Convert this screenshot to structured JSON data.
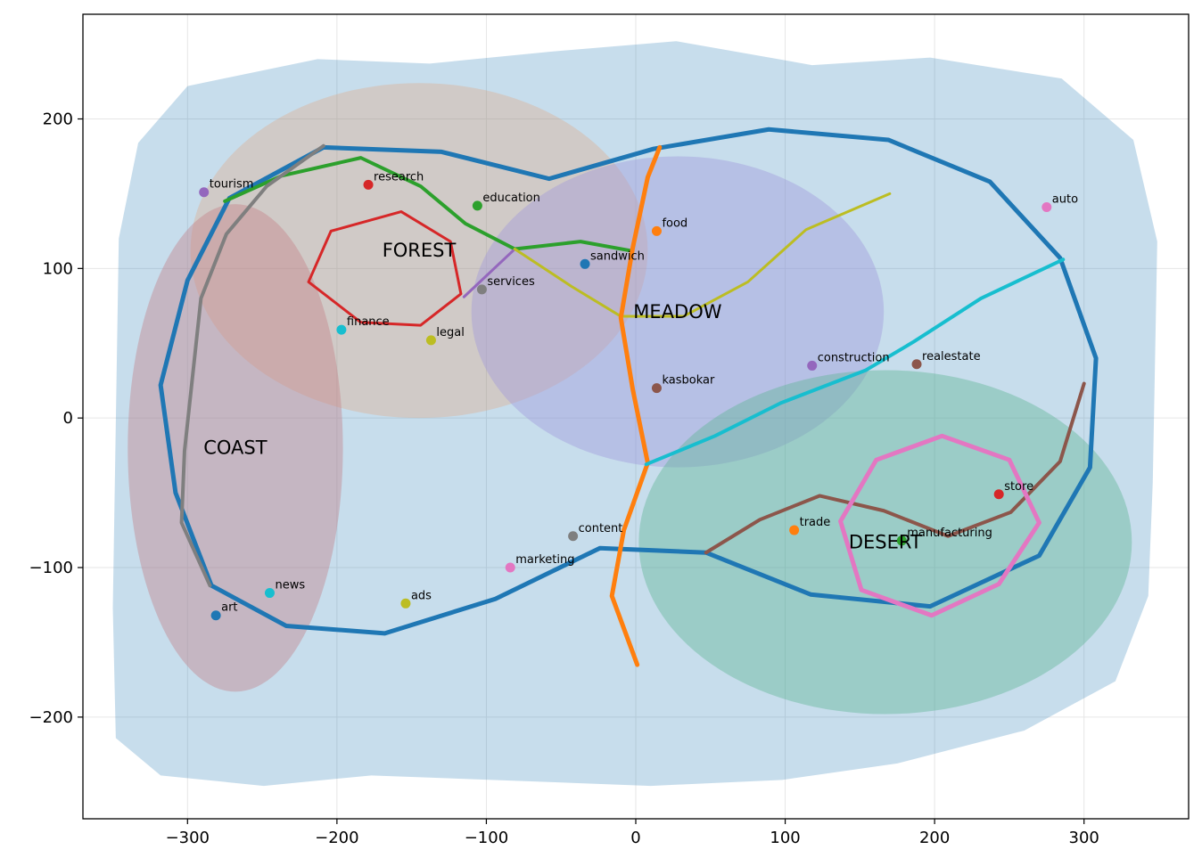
{
  "chart_data": {
    "type": "scatter",
    "title": "",
    "xlabel": "",
    "ylabel": "",
    "xlim": [
      -370,
      370
    ],
    "ylim": [
      -268,
      270
    ],
    "xticks": [
      -300,
      -200,
      -100,
      0,
      100,
      200,
      300
    ],
    "yticks": [
      -200,
      -100,
      0,
      100,
      200
    ],
    "xtick_labels": [
      "−300",
      "−200",
      "−100",
      "0",
      "100",
      "200",
      "300"
    ],
    "ytick_labels": [
      "−200",
      "−100",
      "0",
      "100",
      "200"
    ],
    "grid": true,
    "land": {
      "color": "#1f77b4",
      "opacity": 0.25,
      "polygon": [
        [
          -333,
          184
        ],
        [
          -300,
          222
        ],
        [
          -213,
          240
        ],
        [
          -138,
          237
        ],
        [
          -57,
          245
        ],
        [
          27,
          252
        ],
        [
          118,
          236
        ],
        [
          197,
          241
        ],
        [
          285,
          227
        ],
        [
          333,
          186
        ],
        [
          349,
          118
        ],
        [
          346,
          -43
        ],
        [
          343,
          -119
        ],
        [
          321,
          -176
        ],
        [
          260,
          -209
        ],
        [
          175,
          -231
        ],
        [
          98,
          -242
        ],
        [
          10,
          -246
        ],
        [
          -177,
          -239
        ],
        [
          -249,
          -246
        ],
        [
          -318,
          -239
        ],
        [
          -348,
          -214
        ],
        [
          -350,
          -127
        ],
        [
          -346,
          120
        ]
      ]
    },
    "regions": [
      {
        "name": "FOREST",
        "cx": -145,
        "cy": 112,
        "rx": 153,
        "ry": 112,
        "color": "#e3a072",
        "opacity": 0.3,
        "label_x": -145,
        "label_y": 112
      },
      {
        "name": "MEADOW",
        "cx": 28,
        "cy": 71,
        "rx": 138,
        "ry": 104,
        "color": "#9d96dd",
        "opacity": 0.4,
        "label_x": 28,
        "label_y": 71
      },
      {
        "name": "COAST",
        "cx": -268,
        "cy": -20,
        "rx": 72,
        "ry": 163,
        "color": "#c27c84",
        "opacity": 0.4,
        "label_x": -268,
        "label_y": -20
      },
      {
        "name": "DESERT",
        "cx": 167,
        "cy": -83,
        "rx": 165,
        "ry": 115,
        "color": "#59b492",
        "opacity": 0.4,
        "label_x": 167,
        "label_y": -83
      }
    ],
    "series": [
      {
        "color": "#1f77b4",
        "width": 5,
        "points": [
          [
            -209,
            181
          ],
          [
            -272,
            147
          ],
          [
            -300,
            92
          ],
          [
            -318,
            22
          ],
          [
            -308,
            -50
          ],
          [
            -284,
            -112
          ],
          [
            -234,
            -139
          ],
          [
            -168,
            -144
          ],
          [
            -94,
            -121
          ],
          [
            -24,
            -87
          ],
          [
            47,
            -90
          ],
          [
            117,
            -118
          ],
          [
            197,
            -126
          ],
          [
            270,
            -92
          ],
          [
            304,
            -33
          ],
          [
            308,
            40
          ],
          [
            284,
            107
          ],
          [
            237,
            158
          ],
          [
            169,
            186
          ],
          [
            89,
            193
          ],
          [
            12,
            180
          ],
          [
            -58,
            160
          ],
          [
            -130,
            178
          ],
          [
            -209,
            181
          ]
        ]
      },
      {
        "color": "#2ca02c",
        "width": 4,
        "points": [
          [
            -275,
            145
          ],
          [
            -237,
            162
          ],
          [
            -184,
            174
          ],
          [
            -144,
            155
          ],
          [
            -114,
            130
          ],
          [
            -81,
            113
          ],
          [
            -37,
            118
          ],
          [
            -4,
            112
          ]
        ]
      },
      {
        "color": "#7f7f7f",
        "width": 4,
        "points": [
          [
            -209,
            182
          ],
          [
            -247,
            155
          ],
          [
            -274,
            123
          ],
          [
            -291,
            80
          ],
          [
            -302,
            -22
          ],
          [
            -304,
            -70
          ],
          [
            -285,
            -112
          ]
        ]
      },
      {
        "color": "#d62728",
        "width": 3,
        "points": [
          [
            -204,
            125
          ],
          [
            -157,
            138
          ],
          [
            -124,
            118
          ],
          [
            -117,
            83
          ],
          [
            -144,
            62
          ],
          [
            -184,
            64
          ],
          [
            -219,
            91
          ],
          [
            -204,
            125
          ]
        ]
      },
      {
        "color": "#9467bd",
        "width": 3,
        "points": [
          [
            -115,
            81
          ],
          [
            -82,
            112
          ]
        ]
      },
      {
        "color": "#bcbd22",
        "width": 3,
        "points": [
          [
            -81,
            113
          ],
          [
            -43,
            88
          ],
          [
            -10,
            68
          ],
          [
            32,
            68
          ],
          [
            75,
            91
          ],
          [
            114,
            126
          ],
          [
            170,
            150
          ]
        ]
      },
      {
        "color": "#ff7f0e",
        "width": 5,
        "points": [
          [
            16,
            181
          ],
          [
            8,
            161
          ],
          [
            -2,
            114
          ],
          [
            -10,
            67
          ],
          [
            -2,
            19
          ],
          [
            8,
            -30
          ],
          [
            -8,
            -75
          ],
          [
            -16,
            -119
          ],
          [
            1,
            -165
          ]
        ]
      },
      {
        "color": "#17becf",
        "width": 4,
        "points": [
          [
            7,
            -31
          ],
          [
            53,
            -12
          ],
          [
            97,
            10
          ],
          [
            154,
            32
          ],
          [
            186,
            51
          ],
          [
            231,
            80
          ],
          [
            286,
            106
          ]
        ]
      },
      {
        "color": "#8c564b",
        "width": 4,
        "points": [
          [
            47,
            -90
          ],
          [
            83,
            -68
          ],
          [
            123,
            -52
          ],
          [
            166,
            -62
          ],
          [
            209,
            -79
          ],
          [
            251,
            -63
          ],
          [
            284,
            -29
          ],
          [
            300,
            23
          ]
        ]
      },
      {
        "color": "#e377c2",
        "width": 5,
        "points": [
          [
            161,
            -28
          ],
          [
            205,
            -12
          ],
          [
            250,
            -28
          ],
          [
            270,
            -70
          ],
          [
            243,
            -111
          ],
          [
            198,
            -132
          ],
          [
            151,
            -115
          ],
          [
            137,
            -69
          ],
          [
            161,
            -28
          ]
        ]
      }
    ],
    "points": [
      {
        "label": "tourism",
        "x": -289,
        "y": 151,
        "color": "#9467bd"
      },
      {
        "label": "research",
        "x": -179,
        "y": 156,
        "color": "#d62728"
      },
      {
        "label": "education",
        "x": -106,
        "y": 142,
        "color": "#2ca02c"
      },
      {
        "label": "food",
        "x": 14,
        "y": 125,
        "color": "#ff7f0e"
      },
      {
        "label": "auto",
        "x": 275,
        "y": 141,
        "color": "#e377c2"
      },
      {
        "label": "sandwich",
        "x": -34,
        "y": 103,
        "color": "#1f77b4"
      },
      {
        "label": "services",
        "x": -103,
        "y": 86,
        "color": "#7f7f7f"
      },
      {
        "label": "finance",
        "x": -197,
        "y": 59,
        "color": "#17becf"
      },
      {
        "label": "legal",
        "x": -137,
        "y": 52,
        "color": "#bcbd22"
      },
      {
        "label": "construction",
        "x": 118,
        "y": 35,
        "color": "#9467bd"
      },
      {
        "label": "realestate",
        "x": 188,
        "y": 36,
        "color": "#8c564b"
      },
      {
        "label": "kasbokar",
        "x": 14,
        "y": 20,
        "color": "#8c564b"
      },
      {
        "label": "store",
        "x": 243,
        "y": -51,
        "color": "#d62728"
      },
      {
        "label": "trade",
        "x": 106,
        "y": -75,
        "color": "#ff7f0e"
      },
      {
        "label": "manufacturing",
        "x": 178,
        "y": -82,
        "color": "#2ca02c"
      },
      {
        "label": "content",
        "x": -42,
        "y": -79,
        "color": "#7f7f7f"
      },
      {
        "label": "marketing",
        "x": -84,
        "y": -100,
        "color": "#e377c2"
      },
      {
        "label": "news",
        "x": -245,
        "y": -117,
        "color": "#17becf"
      },
      {
        "label": "ads",
        "x": -154,
        "y": -124,
        "color": "#bcbd22"
      },
      {
        "label": "art",
        "x": -281,
        "y": -132,
        "color": "#1f77b4"
      }
    ]
  }
}
